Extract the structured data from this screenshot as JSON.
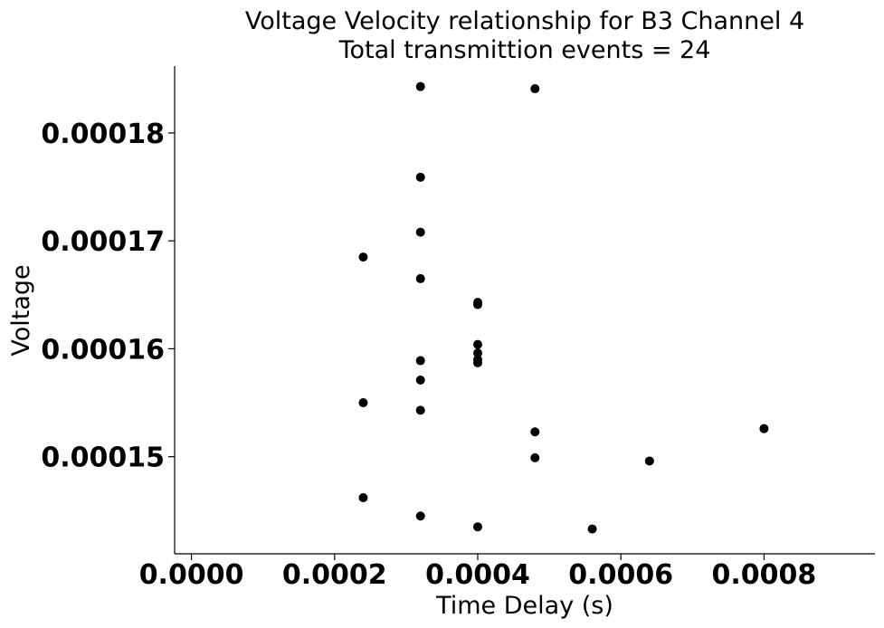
{
  "chart_data": {
    "type": "scatter",
    "title": "Voltage Velocity relationship for B3 Channel 4",
    "subtitle": "Total transmittion events = 24",
    "xlabel": "Time Delay (s)",
    "ylabel": "Voltage",
    "xlim": [
      -2.35e-05,
      0.000955
    ],
    "ylim": [
      0.000141,
      0.0001862
    ],
    "xticks": [
      {
        "value": 0.0,
        "label": "0.0000"
      },
      {
        "value": 0.0002,
        "label": "0.0002"
      },
      {
        "value": 0.0004,
        "label": "0.0004"
      },
      {
        "value": 0.0006,
        "label": "0.0006"
      },
      {
        "value": 0.0008,
        "label": "0.0008"
      }
    ],
    "yticks": [
      {
        "value": 0.00015,
        "label": "0.00015"
      },
      {
        "value": 0.00016,
        "label": "0.00016"
      },
      {
        "value": 0.00017,
        "label": "0.00017"
      },
      {
        "value": 0.00018,
        "label": "0.00018"
      }
    ],
    "grid": false,
    "marker_color": "#000000",
    "points": [
      {
        "x": 0.00024,
        "y": 0.0001685
      },
      {
        "x": 0.00024,
        "y": 0.000155
      },
      {
        "x": 0.00024,
        "y": 0.0001462
      },
      {
        "x": 0.00032,
        "y": 0.0001843
      },
      {
        "x": 0.00032,
        "y": 0.0001759
      },
      {
        "x": 0.00032,
        "y": 0.0001708
      },
      {
        "x": 0.00032,
        "y": 0.0001665
      },
      {
        "x": 0.00032,
        "y": 0.0001589
      },
      {
        "x": 0.00032,
        "y": 0.0001571
      },
      {
        "x": 0.00032,
        "y": 0.0001543
      },
      {
        "x": 0.00032,
        "y": 0.0001445
      },
      {
        "x": 0.0004,
        "y": 0.0001643
      },
      {
        "x": 0.0004,
        "y": 0.0001641
      },
      {
        "x": 0.0004,
        "y": 0.0001604
      },
      {
        "x": 0.0004,
        "y": 0.0001596
      },
      {
        "x": 0.0004,
        "y": 0.000159
      },
      {
        "x": 0.0004,
        "y": 0.0001587
      },
      {
        "x": 0.0004,
        "y": 0.0001435
      },
      {
        "x": 0.00048,
        "y": 0.0001841
      },
      {
        "x": 0.00048,
        "y": 0.0001523
      },
      {
        "x": 0.00048,
        "y": 0.0001499
      },
      {
        "x": 0.00056,
        "y": 0.0001433
      },
      {
        "x": 0.00064,
        "y": 0.0001496
      },
      {
        "x": 0.0008,
        "y": 0.0001526
      }
    ]
  }
}
